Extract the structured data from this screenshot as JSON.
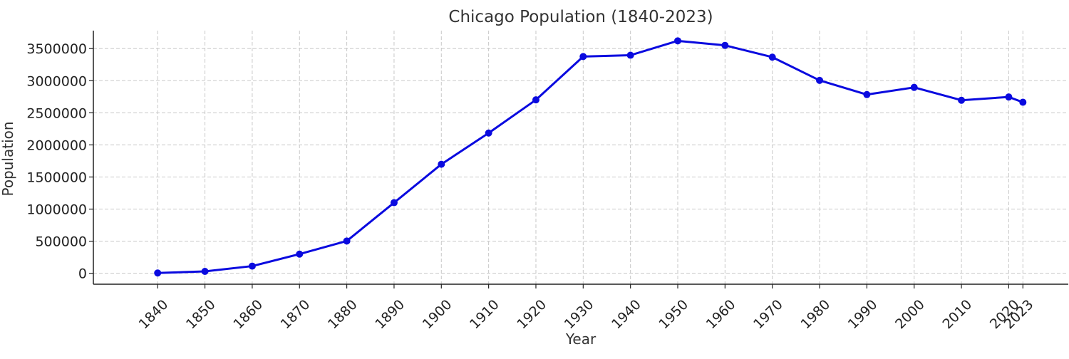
{
  "chart_data": {
    "type": "line",
    "title": "Chicago Population (1840-2023)",
    "xlabel": "Year",
    "ylabel": "Population",
    "x": [
      1840,
      1850,
      1860,
      1870,
      1880,
      1890,
      1900,
      1910,
      1920,
      1930,
      1940,
      1950,
      1960,
      1970,
      1980,
      1990,
      2000,
      2010,
      2020,
      2023
    ],
    "series": [
      {
        "values": [
          4470,
          29963,
          112172,
          298977,
          503185,
          1099850,
          1698575,
          2185283,
          2701705,
          3376438,
          3396808,
          3620962,
          3550404,
          3366957,
          3005072,
          2783726,
          2896016,
          2695598,
          2746388,
          2664452
        ],
        "color": "#0a0adf"
      }
    ],
    "ylim": [
      -170000,
      3780000
    ],
    "xlim": [
      1826.4,
      2032.6
    ],
    "y_ticks": [
      0,
      500000,
      1000000,
      1500000,
      2000000,
      2500000,
      3000000,
      3500000
    ],
    "y_tick_labels": [
      "0",
      "500000",
      "1000000",
      "1500000",
      "2000000",
      "2500000",
      "3000000",
      "3500000"
    ],
    "x_tick_labels": [
      "1840",
      "1850",
      "1860",
      "1870",
      "1880",
      "1890",
      "1900",
      "1910",
      "1920",
      "1930",
      "1940",
      "1950",
      "1960",
      "1970",
      "1980",
      "1990",
      "2000",
      "2010",
      "2020",
      "2023"
    ],
    "grid": true,
    "markers": true
  }
}
